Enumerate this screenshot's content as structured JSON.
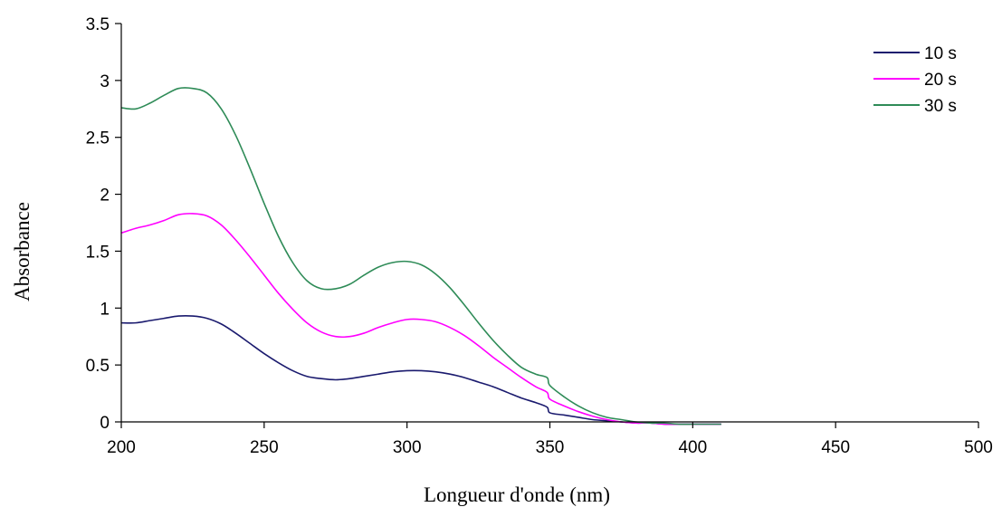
{
  "chart_data": {
    "type": "line",
    "title": "",
    "xlabel": "Longueur d'onde (nm)",
    "ylabel": "Absorbance",
    "xlim": [
      200,
      500
    ],
    "ylim": [
      0,
      3.5
    ],
    "x_ticks": [
      200,
      250,
      300,
      350,
      400,
      450,
      500
    ],
    "y_ticks": [
      0,
      0.5,
      1,
      1.5,
      2,
      2.5,
      3,
      3.5
    ],
    "x_tick_labels": [
      "200",
      "250",
      "300",
      "350",
      "400",
      "450",
      "500"
    ],
    "y_tick_labels": [
      "0",
      "0.5",
      "1",
      "1.5",
      "2",
      "2.5",
      "3",
      "3.5"
    ],
    "grid": false,
    "legend_position": "top-right",
    "x": [
      200,
      205,
      210,
      215,
      220,
      225,
      230,
      235,
      240,
      245,
      250,
      255,
      260,
      265,
      270,
      275,
      280,
      285,
      290,
      295,
      300,
      305,
      310,
      315,
      320,
      325,
      330,
      335,
      340,
      345,
      349,
      350,
      355,
      360,
      365,
      370,
      375,
      380,
      385,
      390,
      395,
      400,
      410
    ],
    "series": [
      {
        "name": "10 s",
        "color": "#1a1a6e",
        "values": [
          0.87,
          0.87,
          0.89,
          0.91,
          0.93,
          0.93,
          0.91,
          0.86,
          0.78,
          0.69,
          0.6,
          0.52,
          0.45,
          0.4,
          0.38,
          0.37,
          0.38,
          0.4,
          0.42,
          0.44,
          0.45,
          0.45,
          0.44,
          0.42,
          0.39,
          0.35,
          0.31,
          0.26,
          0.21,
          0.17,
          0.13,
          0.08,
          0.06,
          0.04,
          0.02,
          0.01,
          0.0,
          -0.01,
          -0.01,
          -0.02,
          -0.02,
          -0.02,
          -0.02
        ]
      },
      {
        "name": "20 s",
        "color": "#ff00ff",
        "values": [
          1.66,
          1.7,
          1.73,
          1.77,
          1.82,
          1.83,
          1.81,
          1.73,
          1.6,
          1.45,
          1.29,
          1.13,
          0.99,
          0.87,
          0.79,
          0.75,
          0.75,
          0.78,
          0.83,
          0.87,
          0.9,
          0.9,
          0.88,
          0.83,
          0.76,
          0.67,
          0.57,
          0.48,
          0.39,
          0.31,
          0.26,
          0.2,
          0.14,
          0.09,
          0.05,
          0.02,
          0.0,
          -0.01,
          -0.01,
          -0.02,
          -0.02,
          -0.02,
          -0.02
        ]
      },
      {
        "name": "30 s",
        "color": "#2e8b57",
        "values": [
          2.76,
          2.75,
          2.8,
          2.87,
          2.93,
          2.93,
          2.89,
          2.75,
          2.52,
          2.23,
          1.92,
          1.63,
          1.4,
          1.24,
          1.17,
          1.17,
          1.21,
          1.29,
          1.36,
          1.4,
          1.41,
          1.38,
          1.3,
          1.18,
          1.03,
          0.87,
          0.72,
          0.59,
          0.48,
          0.42,
          0.39,
          0.32,
          0.22,
          0.14,
          0.08,
          0.04,
          0.02,
          0.0,
          -0.01,
          -0.01,
          -0.02,
          -0.02,
          -0.02
        ]
      }
    ]
  }
}
